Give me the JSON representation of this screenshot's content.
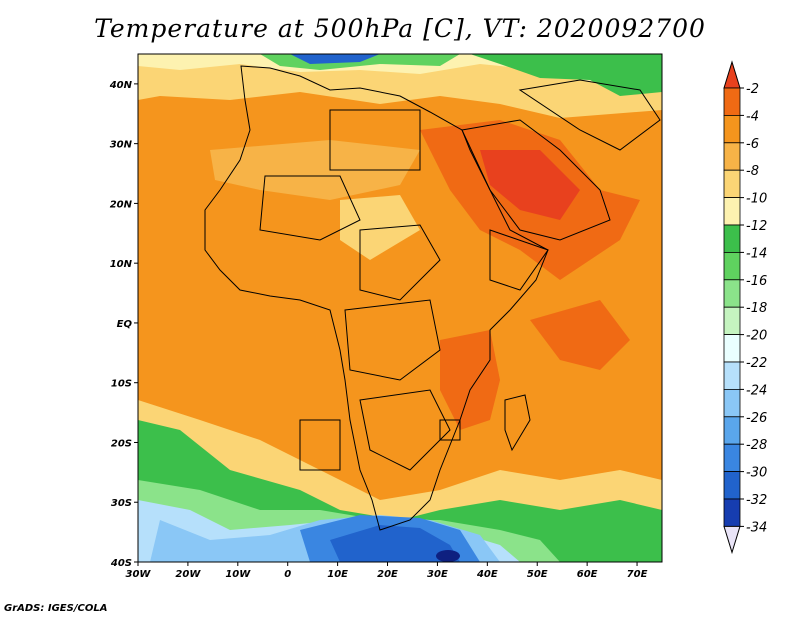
{
  "title": "Temperature at 500hPa [C], VT: 2020092700",
  "credit": "GrADS: IGES/COLA",
  "map": {
    "projection": "latlon",
    "lon_range": [
      -30,
      75
    ],
    "lat_range": [
      -40,
      45
    ],
    "x_ticks": [
      "30W",
      "20W",
      "10W",
      "0",
      "10E",
      "20E",
      "30E",
      "40E",
      "50E",
      "60E",
      "70E"
    ],
    "y_ticks": [
      "40N",
      "30N",
      "20N",
      "10N",
      "EQ",
      "10S",
      "20S",
      "30S",
      "40S"
    ]
  },
  "colorbar": {
    "labels": [
      "-2",
      "-4",
      "-6",
      "-8",
      "-10",
      "-12",
      "-14",
      "-16",
      "-18",
      "-20",
      "-22",
      "-24",
      "-26",
      "-28",
      "-30",
      "-32",
      "-34"
    ],
    "colors": [
      "#e8411e",
      "#f06a14",
      "#f5951d",
      "#f7b347",
      "#fbd575",
      "#fdf2b0",
      "#3cbf4b",
      "#5fd25f",
      "#8be38a",
      "#c5f4c0",
      "#eaffff",
      "#b6e0fb",
      "#8ac7f6",
      "#5aa6ec",
      "#3a86e1",
      "#2163cc",
      "#163db0",
      "#0e2080"
    ]
  },
  "colors": {
    "ocean_warm": "#f5951d",
    "hot": "#e8411e",
    "border": "#000000"
  }
}
